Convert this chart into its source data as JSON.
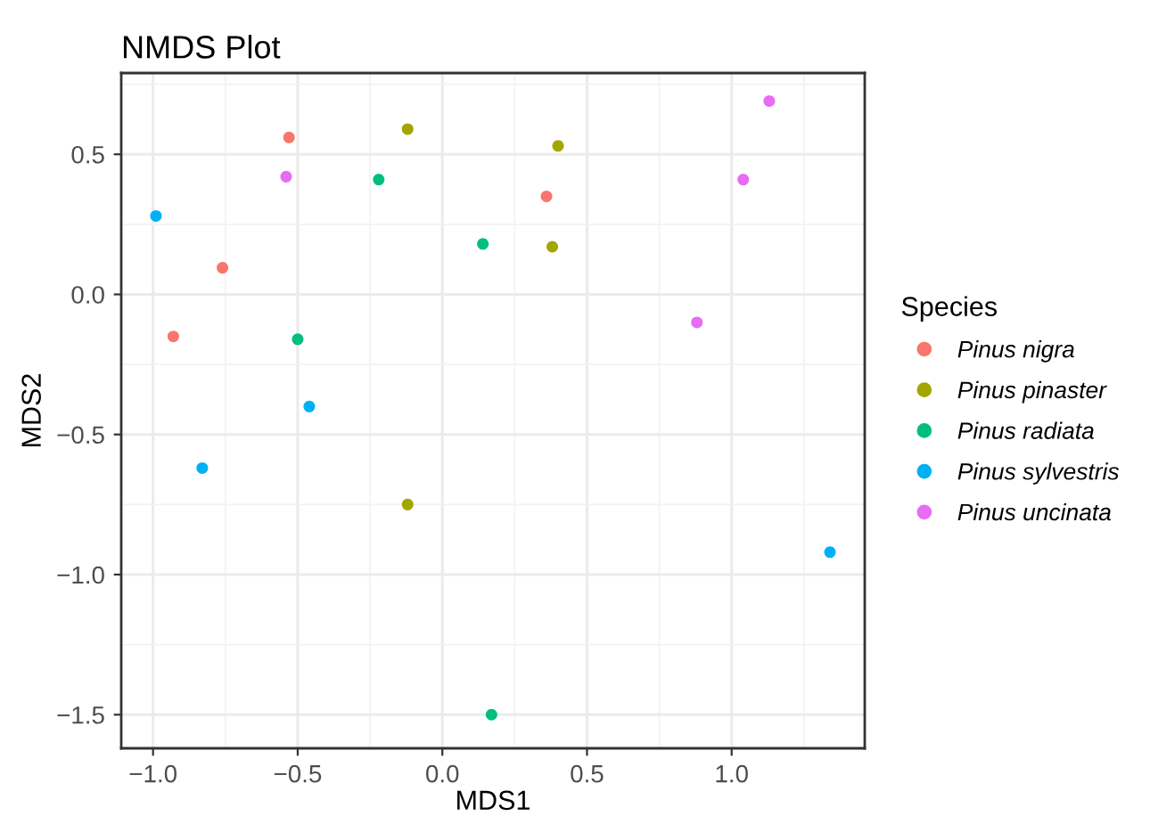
{
  "chart_data": {
    "type": "scatter",
    "title": "NMDS Plot",
    "xlabel": "MDS1",
    "ylabel": "MDS2",
    "legend_title": "Species",
    "legend": "right",
    "grid": true,
    "marker": "circle",
    "xlim": [
      -1.11,
      1.46
    ],
    "ylim": [
      -1.62,
      0.79
    ],
    "xticks": [
      {
        "value": -1.0,
        "label": "−1.0"
      },
      {
        "value": -0.5,
        "label": "−0.5"
      },
      {
        "value": 0.0,
        "label": "0.0"
      },
      {
        "value": 0.5,
        "label": "0.5"
      },
      {
        "value": 1.0,
        "label": "1.0"
      }
    ],
    "yticks": [
      {
        "value": -1.5,
        "label": "−1.5"
      },
      {
        "value": -1.0,
        "label": "−1.0"
      },
      {
        "value": -0.5,
        "label": "−0.5"
      },
      {
        "value": 0.0,
        "label": "0.0"
      },
      {
        "value": 0.5,
        "label": "0.5"
      }
    ],
    "series": [
      {
        "name": "Pinus nigra",
        "color": "#f8766d",
        "x": [
          -0.53,
          -0.76,
          -0.93,
          0.36
        ],
        "values": [
          0.56,
          0.095,
          -0.15,
          0.35
        ]
      },
      {
        "name": "Pinus pinaster",
        "color": "#a3a500",
        "x": [
          -0.12,
          0.4,
          0.38,
          -0.12
        ],
        "values": [
          0.59,
          0.53,
          0.17,
          -0.75
        ]
      },
      {
        "name": "Pinus radiata",
        "color": "#00bf7d",
        "x": [
          -0.22,
          0.14,
          -0.5,
          0.17
        ],
        "values": [
          0.41,
          0.18,
          -0.16,
          -1.5
        ]
      },
      {
        "name": "Pinus sylvestris",
        "color": "#00b0f6",
        "x": [
          -0.99,
          -0.46,
          -0.83,
          1.34
        ],
        "values": [
          0.28,
          -0.4,
          -0.62,
          -0.92
        ]
      },
      {
        "name": "Pinus uncinata",
        "color": "#e76bf3",
        "x": [
          -0.54,
          1.13,
          1.04,
          0.88
        ],
        "values": [
          0.42,
          0.69,
          0.41,
          -0.1
        ]
      }
    ]
  }
}
